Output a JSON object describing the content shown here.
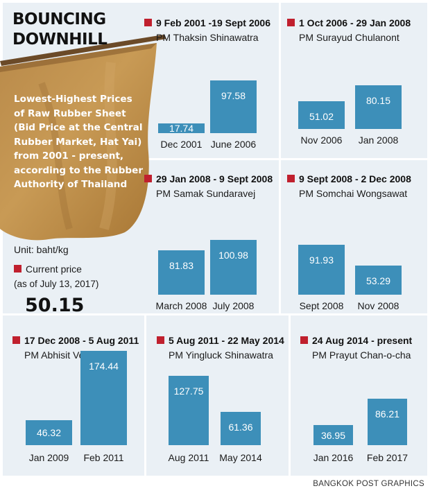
{
  "header": {
    "title_line1": "BOUNCING",
    "title_line2": "DOWNHILL",
    "description": "Lowest-Highest Prices of Raw Rubber Sheet (Bid Price at the Central Rubber Market, Hat Yai) from 2001 - present, according to the Rubber Authority of Thailand",
    "unit": "Unit: baht/kg",
    "current_label": "Current price",
    "current_asof": "(as of July 13,  2017)",
    "current_value": "50.15"
  },
  "colors": {
    "bar": "#3d8fb9",
    "marker": "#c0202e",
    "background": "#eaf0f5"
  },
  "chart_data": [
    {
      "type": "bar",
      "title": "9 Feb 2001 -19 Sept 2006",
      "subtitle": "PM Thaksin Shinawatra",
      "categories": [
        "Dec 2001",
        "June 2006"
      ],
      "values": [
        17.74,
        97.58
      ],
      "labels": [
        "17.74",
        "97.58"
      ]
    },
    {
      "type": "bar",
      "title": "1 Oct 2006 - 29 Jan 2008",
      "subtitle": "PM Surayud Chulanont",
      "categories": [
        "Nov 2006",
        "Jan 2008"
      ],
      "values": [
        51.02,
        80.15
      ],
      "labels": [
        "51.02",
        "80.15"
      ]
    },
    {
      "type": "bar",
      "title": "29 Jan 2008 - 9 Sept 2008",
      "subtitle": "PM Samak Sundaravej",
      "categories": [
        "March 2008",
        "July 2008"
      ],
      "values": [
        81.83,
        100.98
      ],
      "labels": [
        "81.83",
        "100.98"
      ]
    },
    {
      "type": "bar",
      "title": "9 Sept 2008 - 2 Dec 2008",
      "subtitle": "PM Somchai Wongsawat",
      "categories": [
        "Sept 2008",
        "Nov 2008"
      ],
      "values": [
        91.93,
        53.29
      ],
      "labels": [
        "91.93",
        "53.29"
      ]
    },
    {
      "type": "bar",
      "title": "17 Dec 2008 - 5 Aug 2011",
      "subtitle": "PM Abhisit Vejjajiva",
      "categories": [
        "Jan 2009",
        "Feb 2011"
      ],
      "values": [
        46.32,
        174.44
      ],
      "labels": [
        "46.32",
        "174.44"
      ]
    },
    {
      "type": "bar",
      "title": "5 Aug 2011 - 22 May 2014",
      "subtitle": "PM Yingluck Shinawatra",
      "categories": [
        "Aug 2011",
        "May 2014"
      ],
      "values": [
        127.75,
        61.36
      ],
      "labels": [
        "127.75",
        "61.36"
      ]
    },
    {
      "type": "bar",
      "title": "24 Aug 2014 - present",
      "subtitle": "PM Prayut Chan-o-cha",
      "categories": [
        "Jan 2016",
        "Feb 2017"
      ],
      "values": [
        36.95,
        86.21
      ],
      "labels": [
        "36.95",
        "86.21"
      ]
    }
  ],
  "footer": {
    "credit": "BANGKOK POST GRAPHICS"
  }
}
